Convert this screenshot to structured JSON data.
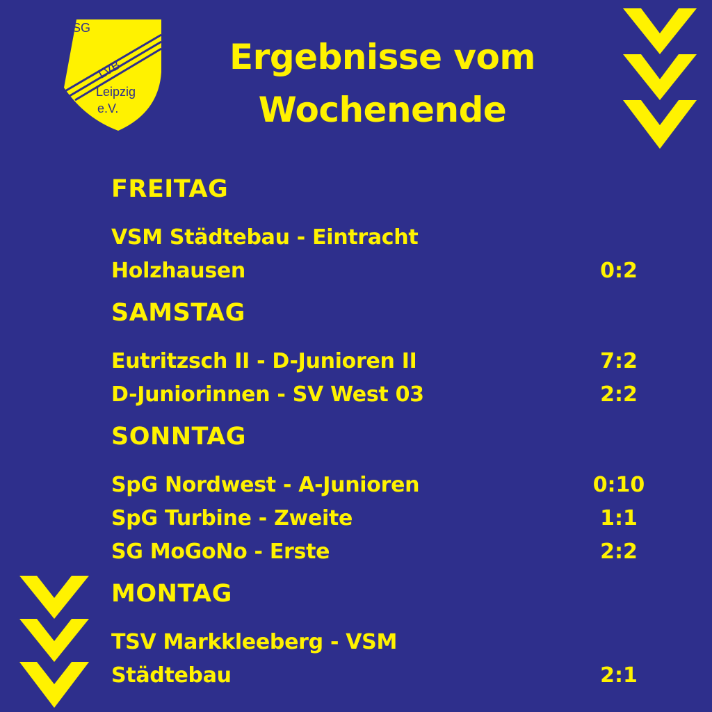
{
  "logo": {
    "line1": "SG",
    "mark": "LVB",
    "line2": "Leipzig",
    "line3": "e.V.",
    "colors": {
      "fill": "#fff200",
      "stroke": "#2e2f8c"
    }
  },
  "title": {
    "line1": "Ergebnisse vom",
    "line2": "Wochenende"
  },
  "icons": {
    "top_right": "chevron-down-icon",
    "bottom_left": "chevron-down-icon"
  },
  "days": [
    {
      "label": "FREITAG",
      "matches": [
        {
          "teams_line1": "VSM Städtebau - Eintracht",
          "teams_line2": "Holzhausen",
          "score": "0:2"
        }
      ]
    },
    {
      "label": "SAMSTAG",
      "matches": [
        {
          "teams": "Eutritzsch II - D-Junioren II",
          "score": "7:2"
        },
        {
          "teams": "D-Juniorinnen - SV West 03",
          "score": "2:2"
        }
      ]
    },
    {
      "label": "SONNTAG",
      "matches": [
        {
          "teams": "SpG Nordwest - A-Junioren",
          "score": "0:10"
        },
        {
          "teams": "SpG Turbine - Zweite",
          "score": "1:1"
        },
        {
          "teams": "SG MoGoNo - Erste",
          "score": "2:2"
        }
      ]
    },
    {
      "label": "MONTAG",
      "matches": [
        {
          "teams_line1": "TSV Markkleeberg - VSM",
          "teams_line2": "Städtebau",
          "score": "2:1"
        }
      ]
    }
  ],
  "colors": {
    "background": "#2e2f8c",
    "accent": "#fff200"
  }
}
